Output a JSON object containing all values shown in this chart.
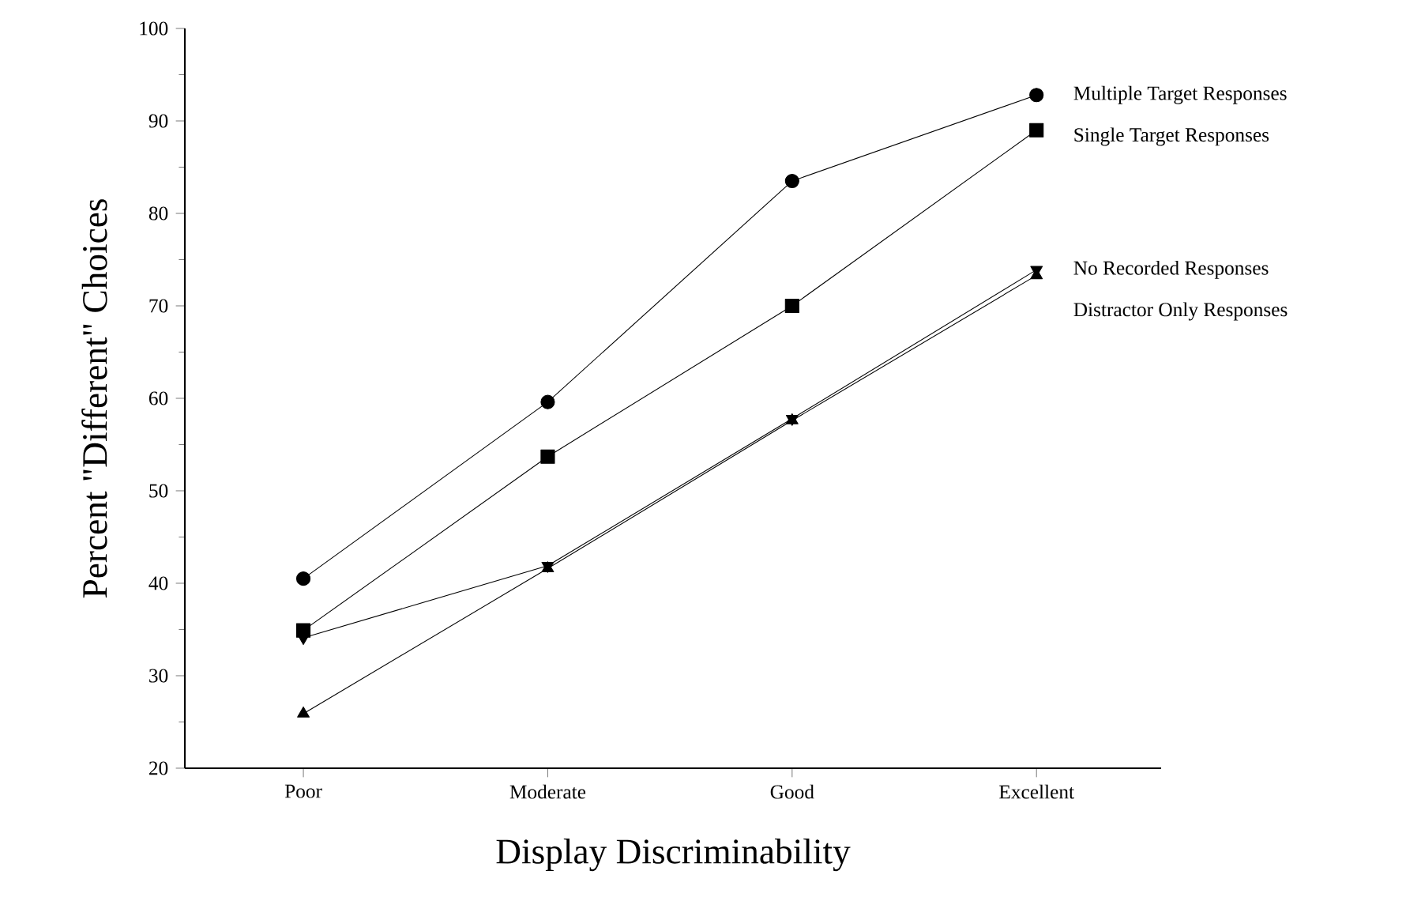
{
  "chart_data": {
    "type": "line",
    "xlabel": "Display Discriminability",
    "ylabel": "Percent \"Different\" Choices",
    "categories": [
      "Poor",
      "Moderate",
      "Good",
      "Excellent"
    ],
    "ylim": [
      20,
      100
    ],
    "yticks": [
      20,
      30,
      40,
      50,
      60,
      70,
      80,
      90,
      100
    ],
    "grid": false,
    "line_style": "solid",
    "series": [
      {
        "name": "Multiple Target Responses",
        "color": "#000000",
        "marker": "circle",
        "values": [
          40.5,
          59.6,
          83.5,
          92.8
        ]
      },
      {
        "name": "Single Target Responses",
        "color": "#000000",
        "marker": "square",
        "values": [
          34.9,
          53.7,
          70,
          89
        ]
      },
      {
        "name": "No Recorded Responses",
        "color": "#000000",
        "marker": "triangle down",
        "values": [
          34.1,
          41.9,
          57.8,
          73.9
        ]
      },
      {
        "name": "Distractor Only Responses",
        "color": "#000000",
        "marker": "triangle",
        "values": [
          25.9,
          41.6,
          57.6,
          73.3
        ]
      }
    ]
  }
}
